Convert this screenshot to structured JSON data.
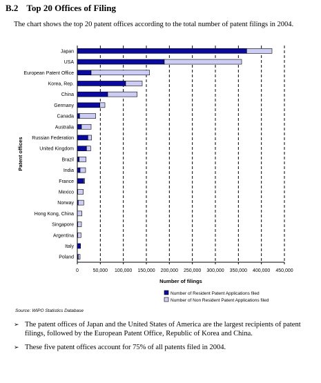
{
  "heading": {
    "number": "B.2",
    "title": "Top 20 Offices of Filing"
  },
  "intro": "The chart shows the top 20 patent offices according to the total number of patent filings in 2004.",
  "colors": {
    "resident": "#0a0a9e",
    "nonresident": "#ccccf5",
    "outline": "#000000"
  },
  "chart_data": {
    "type": "bar",
    "orientation": "horizontal",
    "stacked": true,
    "categories": [
      "Japan",
      "USA",
      "European Patent Office",
      "Korea, Rep.",
      "China",
      "Germany",
      "Canada",
      "Australia",
      "Russian Federation",
      "United Kingdom",
      "Brazil",
      "India",
      "France",
      "Mexico",
      "Norway",
      "Hong Kong, China",
      "Singapore",
      "Argentina",
      "Italy",
      "Poland"
    ],
    "series": [
      {
        "name": "Number of Resident Patent Applications filed",
        "values": [
          368000,
          189000,
          30000,
          105000,
          66000,
          49000,
          5000,
          9000,
          23000,
          20000,
          4000,
          6000,
          14000,
          1000,
          2000,
          0,
          1000,
          1000,
          7000,
          2000
        ]
      },
      {
        "name": "Number of Non Resident Patent Applications filed",
        "values": [
          55000,
          168000,
          127000,
          36000,
          64000,
          11000,
          35000,
          21000,
          8000,
          9000,
          15000,
          12000,
          2000,
          12000,
          12000,
          10000,
          8000,
          7000,
          0,
          4000
        ]
      }
    ],
    "xlabel": "Number of filings",
    "ylabel": "Patent offices",
    "xlim": [
      0,
      450000
    ],
    "xticks": [
      0,
      50000,
      100000,
      150000,
      200000,
      250000,
      300000,
      350000,
      400000,
      450000
    ],
    "xtick_labels": [
      "0",
      "50,000",
      "100,000",
      "150,000",
      "200,000",
      "250,000",
      "300,000",
      "350,000",
      "400,000",
      "450,000"
    ],
    "grid": "vertical dashed",
    "legend_position": "bottom-right"
  },
  "source": "Source: WIPO Statistics Database",
  "bullets": [
    "The patent offices of Japan and the United States of America are the largest recipients of patent filings, followed by the European Patent Office, Republic of Korea and China.",
    "These five patent offices account for 75% of all patents filed in 2004."
  ],
  "bullet_mark": "➢"
}
